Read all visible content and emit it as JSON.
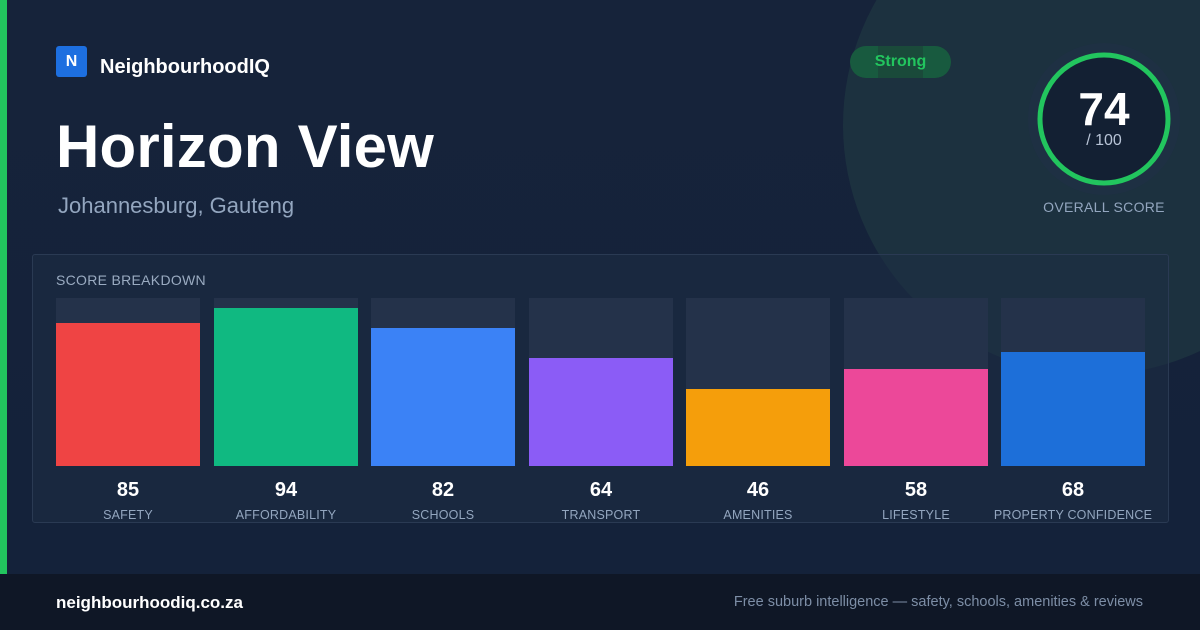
{
  "brand": {
    "logo_letter": "N",
    "name": "NeighbourhoodIQ"
  },
  "suburb": {
    "name": "Horizon View",
    "location": "Johannesburg, Gauteng"
  },
  "status_badge": {
    "label": "Strong",
    "color": "#22c55e"
  },
  "overall": {
    "score": "74",
    "max": "/ 100",
    "label": "OVERALL SCORE",
    "fraction": 0.74,
    "ring_color": "#22c55e"
  },
  "breakdown": {
    "title": "SCORE BREAKDOWN",
    "items": [
      {
        "label": "SAFETY",
        "value": "85",
        "color": "#ef4444"
      },
      {
        "label": "AFFORDABILITY",
        "value": "94",
        "color": "#10b981"
      },
      {
        "label": "SCHOOLS",
        "value": "82",
        "color": "#3b82f6"
      },
      {
        "label": "TRANSPORT",
        "value": "64",
        "color": "#8b5cf6"
      },
      {
        "label": "AMENITIES",
        "value": "46",
        "color": "#f59e0b"
      },
      {
        "label": "LIFESTYLE",
        "value": "58",
        "color": "#ec4899"
      },
      {
        "label": "PROPERTY CONFIDENCE",
        "value": "68",
        "color": "#1d6fd9"
      }
    ]
  },
  "footer": {
    "url": "neighbourhoodiq.co.za",
    "tagline": "Free suburb intelligence — safety, schools, amenities & reviews"
  }
}
